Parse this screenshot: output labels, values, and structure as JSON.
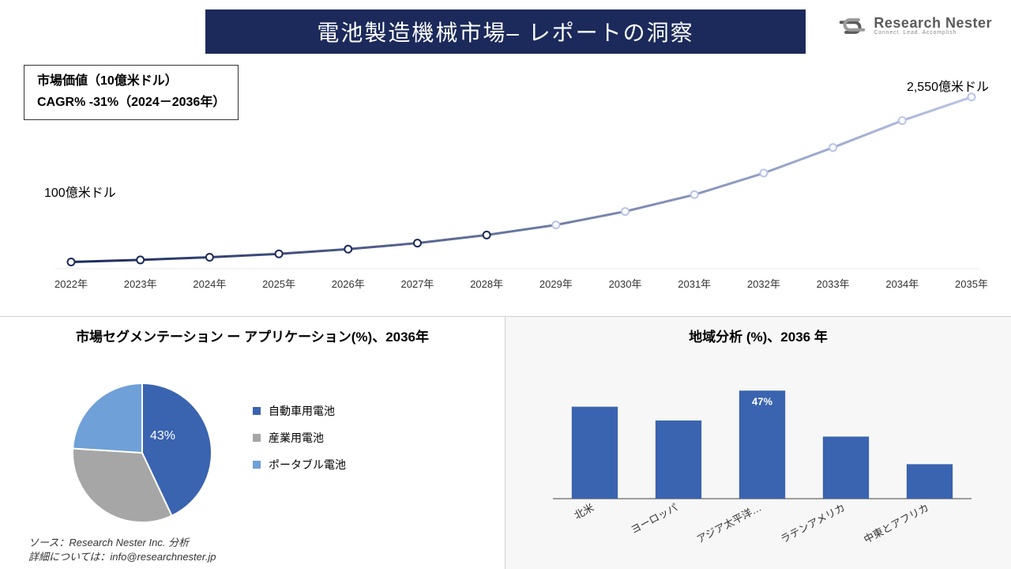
{
  "header": {
    "title": "電池製造機械市場– レポートの洞察",
    "banner_bg": "#1b2a5b",
    "logo_main": "Research Nester",
    "logo_sub": "Connect. Lead. Accomplish",
    "logo_color": "#5a5a5a"
  },
  "info_box": {
    "line1": "市場価値（10億米ドル）",
    "line2": "CAGR% -31%（2024－2036年）"
  },
  "line_chart": {
    "type": "line",
    "years": [
      "2022年",
      "2023年",
      "2024年",
      "2025年",
      "2026年",
      "2027年",
      "2028年",
      "2029年",
      "2030年",
      "2031年",
      "2032年",
      "2033年",
      "2034年",
      "2035年"
    ],
    "values": [
      100,
      130,
      170,
      220,
      290,
      380,
      500,
      650,
      850,
      1100,
      1420,
      1800,
      2200,
      2550
    ],
    "y_min": 0,
    "y_max": 2700,
    "start_label": "100億米ドル",
    "end_label": "2,550億米ドル",
    "line_color_start": "#1b2a5b",
    "line_color_end": "#b8c4e6",
    "line_width": 3,
    "marker_radius": 4.5,
    "marker_fill": "#ffffff",
    "grid_color": "#e8e8e8",
    "axis_label_fontsize": 13,
    "axis_label_color": "#333333"
  },
  "pie": {
    "title": "市場セグメンテーション ー アプリケーション(%)、2036年",
    "slices": [
      {
        "label": "自動車用電池",
        "value": 43,
        "color": "#3a63b0"
      },
      {
        "label": "産業用電池",
        "value": 33,
        "color": "#a6a6a6"
      },
      {
        "label": "ポータブル電池",
        "value": 24,
        "color": "#6fa0d8"
      }
    ],
    "show_percent_on": 0,
    "label_color": "#ffffff",
    "stroke": "#ffffff",
    "stroke_width": 2
  },
  "bar": {
    "title": "地域分析 (%)、2036 年",
    "categories": [
      "北米",
      "ヨーロッパ",
      "アジア太平洋…",
      "ラテンアメリカ",
      "中東とアフリカ"
    ],
    "values": [
      40,
      34,
      47,
      27,
      15
    ],
    "y_max": 55,
    "bar_color": "#3a63b0",
    "bar_width_ratio": 0.55,
    "axis_color": "#666666",
    "label_fontsize": 13,
    "label_color": "#333333",
    "show_value_on": 2
  },
  "footer": {
    "line1": "ソース：Research Nester Inc. 分析",
    "line2": "詳細については：info@researchnester.jp"
  }
}
